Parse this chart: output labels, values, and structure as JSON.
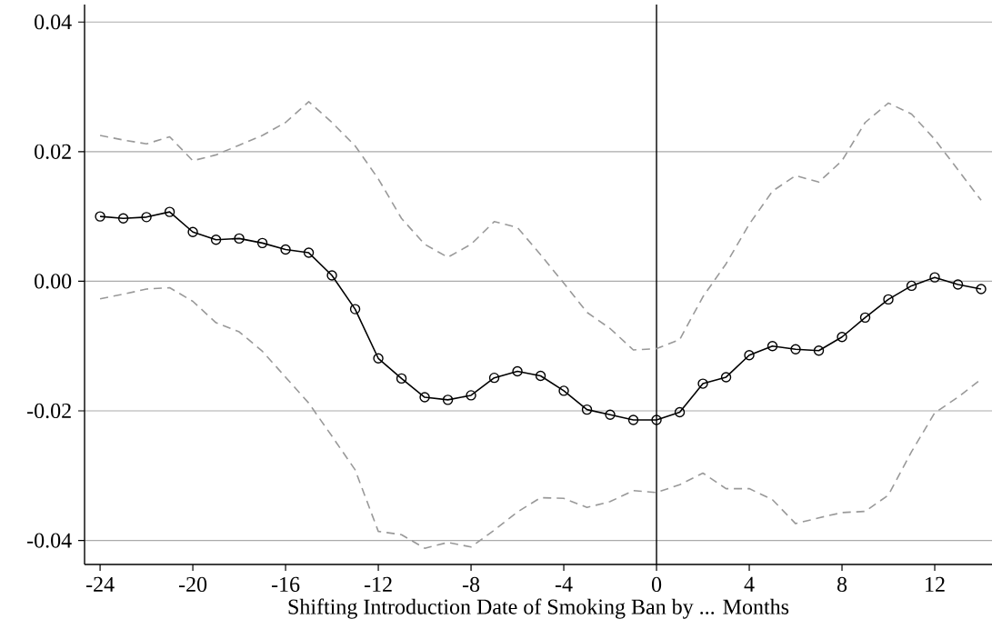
{
  "chart_data": {
    "type": "line",
    "xlabel": "Shifting Introduction Date of Smoking Ban by ... Months",
    "x": [
      -24,
      -23,
      -22,
      -21,
      -20,
      -19,
      -18,
      -17,
      -16,
      -15,
      -14,
      -13,
      -12,
      -11,
      -10,
      -9,
      -8,
      -7,
      -6,
      -5,
      -4,
      -3,
      -2,
      -1,
      0,
      1,
      2,
      3,
      4,
      5,
      6,
      7,
      8,
      9,
      10,
      11,
      12,
      13,
      14
    ],
    "series": [
      {
        "color": "#000000",
        "marker": "circle",
        "line_style": "solid",
        "values": [
          0.01,
          0.0097,
          0.0099,
          0.0107,
          0.0076,
          0.0064,
          0.0066,
          0.0059,
          0.0049,
          0.0044,
          0.0009,
          -0.0043,
          -0.0119,
          -0.015,
          -0.0179,
          -0.0183,
          -0.0176,
          -0.0149,
          -0.0139,
          -0.0146,
          -0.0169,
          -0.0198,
          -0.0206,
          -0.0214,
          -0.0214,
          -0.0202,
          -0.0158,
          -0.0148,
          -0.0114,
          -0.01,
          -0.0105,
          -0.0107,
          -0.0086,
          -0.0056,
          -0.0028,
          -0.0007,
          0.0006,
          -0.0005,
          -0.0012
        ]
      },
      {
        "color": "#999999",
        "marker": "none",
        "line_style": "dashed",
        "values": [
          0.0225,
          0.0218,
          0.0212,
          0.0223,
          0.0186,
          0.0195,
          0.021,
          0.0225,
          0.0245,
          0.0277,
          0.0245,
          0.0209,
          0.0158,
          0.0097,
          0.0057,
          0.0037,
          0.0057,
          0.0092,
          0.0083,
          0.0041,
          -0.0003,
          -0.0048,
          -0.0073,
          -0.0106,
          -0.0104,
          -0.009,
          -0.0024,
          0.0027,
          0.0088,
          0.0139,
          0.0163,
          0.0153,
          0.0186,
          0.0245,
          0.0275,
          0.0258,
          0.0219,
          0.0172,
          0.0125
        ]
      },
      {
        "color": "#999999",
        "marker": "none",
        "line_style": "dashed",
        "values": [
          -0.0027,
          -0.002,
          -0.0012,
          -0.001,
          -0.0031,
          -0.0064,
          -0.0078,
          -0.0108,
          -0.0148,
          -0.0188,
          -0.0239,
          -0.0291,
          -0.0386,
          -0.0391,
          -0.0412,
          -0.0403,
          -0.041,
          -0.0384,
          -0.0356,
          -0.0334,
          -0.0335,
          -0.0349,
          -0.034,
          -0.0323,
          -0.0326,
          -0.0314,
          -0.0296,
          -0.032,
          -0.032,
          -0.0337,
          -0.0374,
          -0.0365,
          -0.0357,
          -0.0355,
          -0.033,
          -0.0263,
          -0.0203,
          -0.0179,
          -0.0151
        ]
      }
    ],
    "xlim": [
      -24.67,
      14.47
    ],
    "ylim": [
      -0.0437,
      0.0427
    ],
    "xticks": [
      -24,
      -20,
      -16,
      -12,
      -8,
      -4,
      0,
      4,
      8,
      12
    ],
    "yticks": [
      {
        "value": -0.04,
        "label": "-0.04"
      },
      {
        "value": -0.02,
        "label": "-0.02"
      },
      {
        "value": 0,
        "label": "0.00"
      },
      {
        "value": 0.02,
        "label": "0.02"
      },
      {
        "value": 0.04,
        "label": "0.04"
      }
    ],
    "grid": "y",
    "ref_lines": [
      {
        "axis": "x",
        "value": 0,
        "color": "#000000"
      }
    ]
  }
}
